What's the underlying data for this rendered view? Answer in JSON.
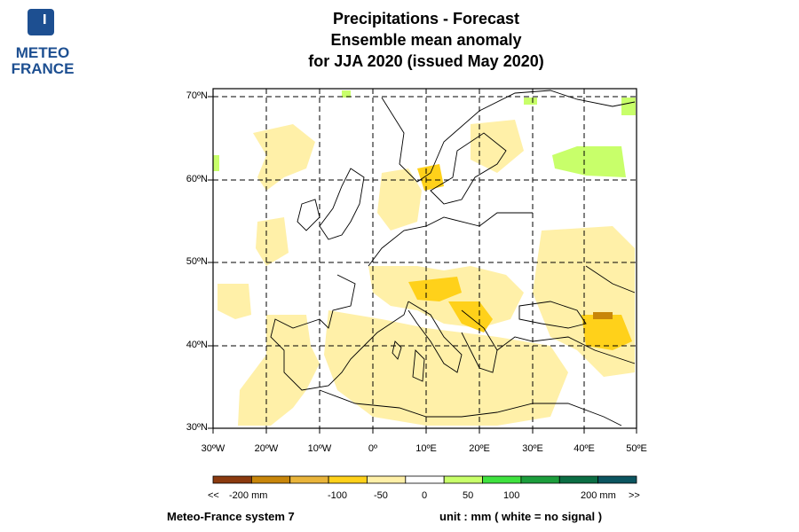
{
  "logo": {
    "line1": "METEO",
    "line2": "FRANCE"
  },
  "title": {
    "line1": "Precipitations   -   Forecast",
    "line2": "Ensemble mean anomaly",
    "line3": "for JJA 2020   (issued May 2020)"
  },
  "map": {
    "projection": "lat-lon",
    "region": "Europe",
    "lon_range": [
      -30,
      50
    ],
    "lat_range": [
      30,
      70
    ],
    "grid": "dashed",
    "lat_labels": [
      "70ºN",
      "60ºN",
      "50ºN",
      "40ºN",
      "30ºN"
    ],
    "lon_labels": [
      "30ºW",
      "20ºW",
      "10ºW",
      "0º",
      "10ºE",
      "20ºE",
      "30ºE",
      "40ºE",
      "50ºE"
    ]
  },
  "legend": {
    "colors": [
      "#8b3a0f",
      "#c8860a",
      "#e9b43a",
      "#ffd11a",
      "#fff0a8",
      "#ffffff",
      "#c8ff6a",
      "#3fe23f",
      "#1c9e3c",
      "#0b6e44",
      "#0b5560"
    ],
    "labels": [
      {
        "text": "<<",
        "value": "low"
      },
      {
        "text": "-200 mm",
        "value": -200
      },
      {
        "text": "-100",
        "value": -100
      },
      {
        "text": "-50",
        "value": -50
      },
      {
        "text": "0",
        "value": 0
      },
      {
        "text": "50",
        "value": 50
      },
      {
        "text": "100",
        "value": 100
      },
      {
        "text": "200 mm",
        "value": 200
      },
      {
        "text": ">>",
        "value": "high"
      }
    ]
  },
  "footer": {
    "system": "Meteo-France system 7",
    "unit": "unit :  mm    ( white = no signal )"
  }
}
